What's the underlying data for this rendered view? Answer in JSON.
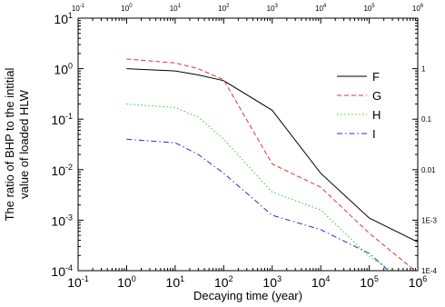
{
  "chart_data": {
    "type": "line",
    "title": "",
    "xlabel": "Decaying time (year)",
    "ylabel_line1": "The ratio of BHP to the intitial",
    "ylabel_line2": "value of loaded HLW",
    "xscale": "log",
    "yscale": "log",
    "xlim": [
      0.1,
      1000000
    ],
    "ylim": [
      0.0001,
      10
    ],
    "grid": false,
    "legend_position": "right",
    "x_ticks": [
      {
        "value": 0.1,
        "base": "10",
        "exp": "-1"
      },
      {
        "value": 1,
        "base": "10",
        "exp": "0"
      },
      {
        "value": 10,
        "base": "10",
        "exp": "1"
      },
      {
        "value": 100,
        "base": "10",
        "exp": "2"
      },
      {
        "value": 1000,
        "base": "10",
        "exp": "3"
      },
      {
        "value": 10000,
        "base": "10",
        "exp": "4"
      },
      {
        "value": 100000,
        "base": "10",
        "exp": "5"
      },
      {
        "value": 1000000,
        "base": "10",
        "exp": "6"
      }
    ],
    "top_x_ticks": [
      "10-1",
      "100",
      "101",
      "102",
      "103",
      "104",
      "105",
      "106"
    ],
    "y_ticks": [
      {
        "value": 10,
        "base": "10",
        "exp": "1"
      },
      {
        "value": 1,
        "base": "10",
        "exp": "0"
      },
      {
        "value": 0.1,
        "base": "10",
        "exp": "-1"
      },
      {
        "value": 0.01,
        "base": "10",
        "exp": "-2"
      },
      {
        "value": 0.001,
        "base": "10",
        "exp": "-3"
      },
      {
        "value": 0.0001,
        "base": "10",
        "exp": "-4"
      }
    ],
    "right_y_ticks": [
      {
        "value": 1,
        "label": "1"
      },
      {
        "value": 0.1,
        "label": "0.1"
      },
      {
        "value": 0.01,
        "label": "0.01"
      },
      {
        "value": 0.001,
        "label": "1E-3"
      },
      {
        "value": 0.0001,
        "label": "1E-4"
      }
    ],
    "series": [
      {
        "name": "F",
        "color": "#000000",
        "dash": "solid",
        "x": [
          1,
          10,
          30,
          100,
          1000,
          10000,
          100000,
          1000000
        ],
        "y": [
          1.0,
          0.9,
          0.75,
          0.58,
          0.15,
          0.0085,
          0.0011,
          0.00037
        ]
      },
      {
        "name": "G",
        "color": "#e8302a",
        "dash": "dashed",
        "x": [
          1,
          10,
          30,
          100,
          1000,
          10000,
          100000,
          1000000
        ],
        "y": [
          1.55,
          1.3,
          1.0,
          0.6,
          0.013,
          0.0045,
          0.00055,
          9e-05
        ]
      },
      {
        "name": "H",
        "color": "#33cc33",
        "dash": "dotted",
        "x": [
          1,
          10,
          30,
          100,
          1000,
          10000,
          100000,
          300000
        ],
        "y": [
          0.2,
          0.17,
          0.11,
          0.04,
          0.0036,
          0.0016,
          0.00019,
          0.0001
        ]
      },
      {
        "name": "I",
        "color": "#2233cc",
        "dash": "dashdot",
        "x": [
          1,
          10,
          30,
          100,
          1000,
          10000,
          100000,
          250000
        ],
        "y": [
          0.04,
          0.034,
          0.02,
          0.0085,
          0.00125,
          0.00065,
          0.00022,
          0.0001
        ]
      }
    ]
  }
}
